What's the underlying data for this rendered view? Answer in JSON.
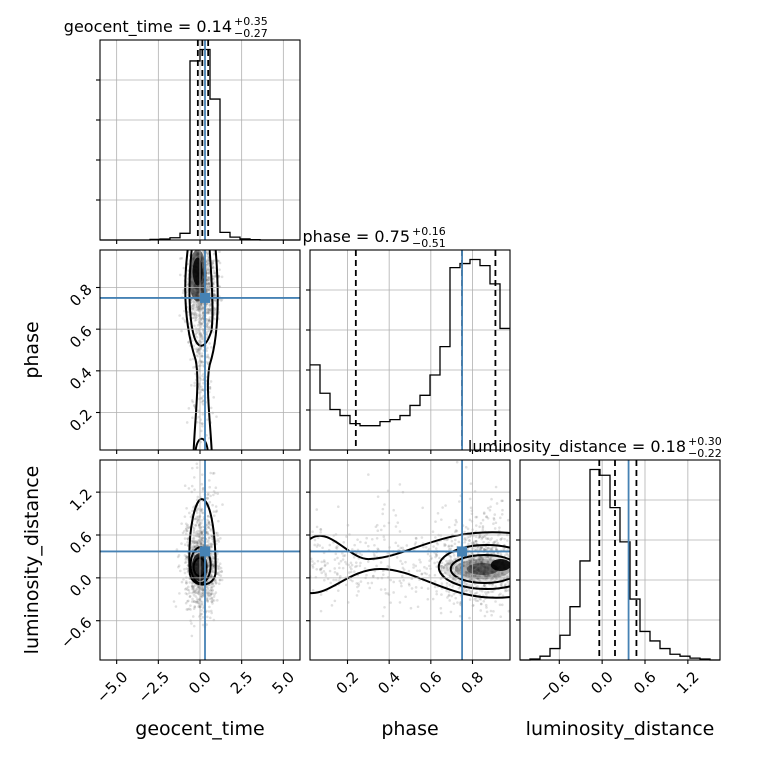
{
  "colors": {
    "truth": "#4682b4",
    "hist": "#000000",
    "grid": "#b0b0b0"
  },
  "chart_data": {
    "type": "corner",
    "parameters": [
      "geocent_time",
      "phase",
      "luminosity_distance"
    ],
    "truths": {
      "geocent_time": 0.3,
      "phase": 0.75,
      "luminosity_distance": 0.37
    },
    "titles": [
      {
        "param": "geocent_time",
        "text": "geocent_time = 0.14",
        "plus": "+0.35",
        "minus": "−0.27"
      },
      {
        "param": "phase",
        "text": "phase = 0.75",
        "plus": "+0.16",
        "minus": "−0.51"
      },
      {
        "param": "luminosity_distance",
        "text": "luminosity_distance = 0.18",
        "plus": "+0.30",
        "minus": "−0.22"
      }
    ],
    "axis_labels": {
      "x": [
        "geocent_time",
        "phase",
        "luminosity_distance"
      ],
      "y": [
        "phase",
        "luminosity_distance"
      ]
    },
    "ranges": {
      "geocent_time": [
        -6.0,
        6.0
      ],
      "phase": [
        0.02,
        0.98
      ],
      "luminosity_distance": [
        -1.15,
        1.65
      ]
    },
    "ticks": {
      "geocent_time": {
        "values": [
          -5.0,
          -2.5,
          0.0,
          2.5,
          5.0
        ],
        "labels": [
          "−5.0",
          "−2.5",
          "0.0",
          "2.5",
          "5.0"
        ]
      },
      "phase": {
        "values": [
          0.2,
          0.4,
          0.6,
          0.8
        ],
        "labels": [
          "0.2",
          "0.4",
          "0.6",
          "0.8"
        ]
      },
      "luminosity_distance": {
        "values": [
          -0.6,
          0.0,
          0.6,
          1.2
        ],
        "labels": [
          "−0.6",
          "0.0",
          "0.6",
          "1.2"
        ]
      }
    },
    "marginals": {
      "geocent_time": {
        "quantiles": [
          -0.13,
          0.14,
          0.49
        ],
        "bin_edges": [
          -6.0,
          -5.4,
          -4.8,
          -4.2,
          -3.6,
          -3.0,
          -2.4,
          -1.8,
          -1.2,
          -0.6,
          0.0,
          0.6,
          1.2,
          1.8,
          2.4,
          3.0,
          3.6,
          4.2,
          4.8,
          5.4,
          6.0
        ],
        "counts": [
          0,
          0,
          0,
          0,
          0,
          0.3,
          0.5,
          1.2,
          3.5,
          94,
          100,
          74,
          4,
          1.5,
          0.6,
          0.2,
          0,
          0,
          0,
          0
        ]
      },
      "phase": {
        "quantiles": [
          0.24,
          0.75,
          0.91
        ],
        "bin_edges": [
          0.02,
          0.068,
          0.116,
          0.164,
          0.212,
          0.26,
          0.308,
          0.356,
          0.404,
          0.452,
          0.5,
          0.548,
          0.596,
          0.644,
          0.692,
          0.74,
          0.788,
          0.836,
          0.884,
          0.932,
          0.98
        ],
        "counts": [
          42,
          28,
          20,
          17,
          13,
          12,
          12,
          14,
          15,
          17,
          22,
          27,
          37,
          51,
          90,
          92,
          94,
          91,
          82,
          60
        ]
      },
      "luminosity_distance": {
        "quantiles": [
          -0.04,
          0.18,
          0.48
        ],
        "bin_edges": [
          -1.15,
          -1.01,
          -0.87,
          -0.73,
          -0.59,
          -0.45,
          -0.31,
          -0.17,
          -0.03,
          0.11,
          0.25,
          0.39,
          0.53,
          0.67,
          0.81,
          0.95,
          1.09,
          1.23,
          1.37,
          1.51,
          1.65
        ],
        "counts": [
          0,
          0.5,
          2,
          6,
          13,
          28,
          52,
          100,
          97,
          80,
          62,
          32,
          15,
          10,
          6,
          3,
          2,
          1,
          0.5,
          0
        ]
      }
    },
    "pairs": [
      {
        "x": "geocent_time",
        "y": "phase",
        "center": [
          0.1,
          0.8
        ]
      },
      {
        "x": "geocent_time",
        "y": "luminosity_distance",
        "center": [
          0.1,
          0.15
        ]
      },
      {
        "x": "phase",
        "y": "luminosity_distance",
        "center": [
          0.83,
          0.18
        ]
      }
    ]
  }
}
